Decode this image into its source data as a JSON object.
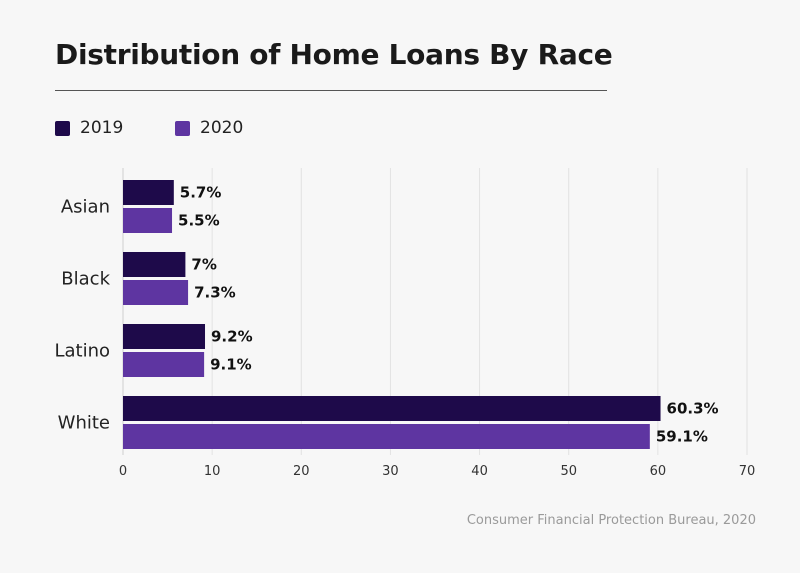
{
  "chart_data": {
    "type": "bar",
    "orientation": "horizontal",
    "title": "Distribution of Home Loans By Race",
    "categories": [
      "Asian",
      "Black",
      "Latino",
      "White"
    ],
    "series": [
      {
        "name": "2019",
        "values": [
          5.7,
          7,
          9.2,
          60.3
        ],
        "labels": [
          "5.7%",
          "7%",
          "9.2%",
          "60.3%"
        ],
        "color": "#1e0a4a"
      },
      {
        "name": "2020",
        "values": [
          5.5,
          7.3,
          9.1,
          59.1
        ],
        "labels": [
          "5.5%",
          "7.3%",
          "9.1%",
          "59.1%"
        ],
        "color": "#5e35a1"
      }
    ],
    "xlim": [
      0,
      70
    ],
    "xticks": [
      0,
      10,
      20,
      30,
      40,
      50,
      60,
      70
    ],
    "grid": "vertical",
    "legend_position": "top-left",
    "source": "Consumer Financial Protection Bureau, 2020"
  }
}
